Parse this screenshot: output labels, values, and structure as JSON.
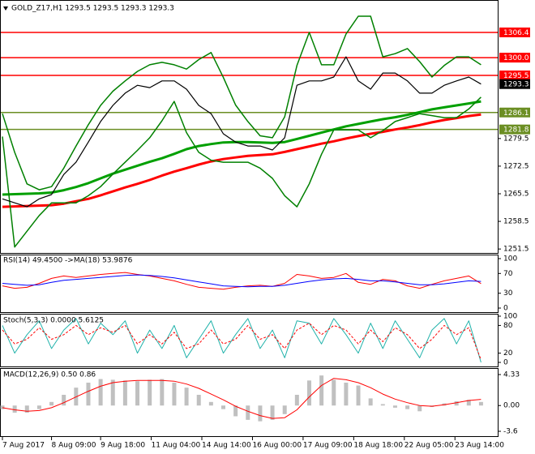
{
  "chart_data": [
    {
      "type": "line",
      "title": "GOLD_Z17,H1  1293.5 1293.5 1293.3 1293.3",
      "x": [
        0,
        8,
        16,
        24,
        32,
        40,
        48,
        56,
        64,
        72,
        80,
        88,
        96,
        104,
        112,
        120,
        128,
        136,
        144,
        152,
        160,
        168,
        176,
        184,
        192,
        200,
        208,
        216,
        224,
        232,
        240,
        248,
        256,
        264,
        272,
        280,
        288,
        296,
        304,
        312
      ],
      "xlim": [
        0,
        316
      ],
      "ylim": [
        1250.5,
        1314.2
      ],
      "yticks": [
        1251.5,
        1258.5,
        1265.5,
        1272.5,
        1279.5
      ],
      "levels": [
        {
          "value": 1306.4,
          "color": "#ff0000"
        },
        {
          "value": 1300,
          "label": "1300.0",
          "color": "#ff0000"
        },
        {
          "value": 1295.5,
          "color": "#ff0000"
        },
        {
          "value": 1293.3,
          "color": "#000000"
        },
        {
          "value": 1286.1,
          "color": "#6b8e23"
        },
        {
          "value": 1281.8,
          "color": "#6b8e23"
        }
      ],
      "series": [
        {
          "color": "#ff0000",
          "width": 3,
          "values": [
            1262.2,
            1262.3,
            1262.4,
            1262.5,
            1262.6,
            1263.0,
            1263.6,
            1264.2,
            1265.1,
            1266.1,
            1267.1,
            1268.0,
            1269.0,
            1270.1,
            1271.1,
            1272.0,
            1272.9,
            1273.7,
            1274.3,
            1274.7,
            1275.1,
            1275.3,
            1275.5,
            1276.1,
            1276.8,
            1277.5,
            1278.2,
            1278.8,
            1279.5,
            1280.1,
            1280.7,
            1281.2,
            1281.8,
            1282.3,
            1282.9,
            1283.6,
            1284.2,
            1284.7,
            1285.2,
            1285.6
          ]
        },
        {
          "color": "#00a000",
          "width": 3,
          "values": [
            1265.3,
            1265.4,
            1265.5,
            1265.6,
            1265.8,
            1266.4,
            1267.2,
            1268.2,
            1269.4,
            1270.6,
            1271.6,
            1272.6,
            1273.6,
            1274.5,
            1275.6,
            1276.8,
            1277.6,
            1278.1,
            1278.5,
            1278.6,
            1278.6,
            1278.5,
            1278.4,
            1278.6,
            1279.4,
            1280.2,
            1281.0,
            1281.8,
            1282.6,
            1283.2,
            1283.8,
            1284.4,
            1284.9,
            1285.5,
            1286.2,
            1286.9,
            1287.4,
            1287.9,
            1288.4,
            1288.9
          ]
        },
        {
          "color": "#008000",
          "width": 1.5,
          "values": [
            1285.8,
            1276,
            1268,
            1266.5,
            1267.3,
            1272,
            1277.6,
            1283,
            1287.9,
            1291.5,
            1294.1,
            1296.5,
            1298.2,
            1298.8,
            1298.2,
            1297.1,
            1299.5,
            1301.3,
            1295,
            1288,
            1283.8,
            1280.2,
            1279.7,
            1285,
            1298,
            1306.4,
            1298.2,
            1298.2,
            1306,
            1310.5,
            1310.5,
            1300.2,
            1301,
            1302.3,
            1299,
            1295.1,
            1298,
            1300.2,
            1300.2,
            1298.2
          ]
        },
        {
          "color": "#008000",
          "width": 1.5,
          "values": [
            1280,
            1252,
            1256,
            1260,
            1263.2,
            1263.2,
            1263.2,
            1265,
            1267.3,
            1270.5,
            1273.5,
            1276.5,
            1279.7,
            1284,
            1288.9,
            1281,
            1276,
            1274,
            1273.5,
            1273.5,
            1273.5,
            1272,
            1269.4,
            1265,
            1262.2,
            1268,
            1275.5,
            1281.7,
            1281.7,
            1281.7,
            1279.7,
            1281.5,
            1283.8,
            1284.8,
            1285.8,
            1285.3,
            1284.8,
            1284.8,
            1287,
            1290.0
          ]
        },
        {
          "color": "#000000",
          "width": 1.2,
          "values": [
            1264.2,
            1263.2,
            1262.2,
            1264.2,
            1265.3,
            1270.4,
            1273.5,
            1278.6,
            1283.8,
            1287.9,
            1291.0,
            1293.0,
            1292.4,
            1294.1,
            1294.1,
            1292.0,
            1287.9,
            1285.8,
            1280.7,
            1278.6,
            1277.6,
            1277.6,
            1276.6,
            1279.7,
            1293.0,
            1294.1,
            1294.1,
            1295.1,
            1300.2,
            1294.1,
            1292.0,
            1296.1,
            1296.1,
            1294.1,
            1291.0,
            1291.0,
            1293.0,
            1294.1,
            1295.1,
            1293.3
          ]
        }
      ]
    },
    {
      "type": "line",
      "title": "RSI(14) 49.4500 ->MA(18) 53.9876",
      "x": [
        0,
        8,
        16,
        24,
        32,
        40,
        48,
        56,
        64,
        72,
        80,
        88,
        96,
        104,
        112,
        120,
        128,
        136,
        144,
        152,
        160,
        168,
        176,
        184,
        192,
        200,
        208,
        216,
        224,
        232,
        240,
        248,
        256,
        264,
        272,
        280,
        288,
        296,
        304,
        312
      ],
      "xlim": [
        0,
        316
      ],
      "ylim": [
        0,
        100
      ],
      "yticks": [
        0,
        30,
        70,
        100
      ],
      "series": [
        {
          "color": "#ff0000",
          "width": 1,
          "values": [
            45,
            40,
            42,
            50,
            60,
            65,
            62,
            65,
            68,
            70,
            72,
            68,
            65,
            60,
            55,
            48,
            42,
            40,
            38,
            42,
            45,
            46,
            44,
            50,
            68,
            65,
            60,
            62,
            70,
            52,
            48,
            58,
            55,
            45,
            40,
            48,
            55,
            60,
            65,
            49.45
          ]
        },
        {
          "color": "#0000ff",
          "width": 1,
          "values": [
            50,
            48,
            46,
            47,
            52,
            56,
            58,
            60,
            62,
            64,
            66,
            67,
            66,
            64,
            61,
            57,
            53,
            49,
            45,
            44,
            43,
            44,
            44,
            46,
            50,
            54,
            57,
            59,
            60,
            58,
            55,
            55,
            53,
            50,
            47,
            47,
            49,
            52,
            55,
            53.9876
          ]
        }
      ]
    },
    {
      "type": "line",
      "title": "Stoch(5,3,3) 0.0000 5.6125",
      "x": [
        0,
        8,
        16,
        24,
        32,
        40,
        48,
        56,
        64,
        72,
        80,
        88,
        96,
        104,
        112,
        120,
        128,
        136,
        144,
        152,
        160,
        168,
        176,
        184,
        192,
        200,
        208,
        216,
        224,
        232,
        240,
        248,
        256,
        264,
        272,
        280,
        288,
        296,
        304,
        312
      ],
      "xlim": [
        0,
        316
      ],
      "ylim": [
        0,
        100
      ],
      "yticks": [
        0,
        20,
        80,
        100
      ],
      "series": [
        {
          "color": "#20b2aa",
          "width": 1,
          "values": [
            80,
            20,
            60,
            90,
            30,
            70,
            95,
            40,
            85,
            60,
            90,
            20,
            70,
            30,
            80,
            10,
            50,
            90,
            20,
            60,
            95,
            30,
            70,
            10,
            90,
            85,
            40,
            95,
            60,
            20,
            85,
            30,
            90,
            50,
            10,
            70,
            95,
            40,
            90,
            0
          ]
        },
        {
          "color": "#ff0000",
          "width": 1,
          "dash": true,
          "values": [
            70,
            40,
            50,
            75,
            50,
            60,
            80,
            60,
            75,
            65,
            80,
            40,
            60,
            40,
            65,
            30,
            40,
            70,
            40,
            50,
            80,
            50,
            60,
            30,
            70,
            85,
            60,
            80,
            70,
            40,
            70,
            45,
            75,
            60,
            30,
            50,
            80,
            60,
            75,
            5.6125
          ]
        }
      ]
    },
    {
      "type": "bar",
      "title": "MACD(12,26,9) 0.50 0.86",
      "x": [
        0,
        8,
        16,
        24,
        32,
        40,
        48,
        56,
        64,
        72,
        80,
        88,
        96,
        104,
        112,
        120,
        128,
        136,
        144,
        152,
        160,
        168,
        176,
        184,
        192,
        200,
        208,
        216,
        224,
        232,
        240,
        248,
        256,
        264,
        272,
        280,
        288,
        296,
        304,
        312
      ],
      "xlim": [
        0,
        316
      ],
      "ylim": [
        -3.6,
        4.33
      ],
      "yticks": [
        -3.6,
        {
          "value": 0,
          "label": "0.00"
        },
        4.33
      ],
      "xticks": [
        {
          "value": 0,
          "label": "7 Aug 2017"
        },
        {
          "value": 32,
          "label": "8 Aug 09:00"
        },
        {
          "value": 64,
          "label": "9 Aug 18:00"
        },
        {
          "value": 97,
          "label": "11 Aug 04:00"
        },
        {
          "value": 130,
          "label": "14 Aug 14:00"
        },
        {
          "value": 163,
          "label": "16 Aug 00:00"
        },
        {
          "value": 196,
          "label": "17 Aug 09:00"
        },
        {
          "value": 229,
          "label": "18 Aug 18:00"
        },
        {
          "value": 262,
          "label": "22 Aug 05:00"
        },
        {
          "value": 295,
          "label": "23 Aug 14:00"
        }
      ],
      "color": "#c0c0c0",
      "values": [
        -0.5,
        -1.0,
        -1.0,
        -0.5,
        0.5,
        1.5,
        2.5,
        3.2,
        3.7,
        3.6,
        3.5,
        3.4,
        3.6,
        3.7,
        3.2,
        2.5,
        1.5,
        0.5,
        -0.5,
        -1.5,
        -2.0,
        -2.2,
        -2.0,
        -1.2,
        1.5,
        3.5,
        4.2,
        3.6,
        3.2,
        2.8,
        1.0,
        0.2,
        -0.3,
        -0.5,
        -0.8,
        -0.2,
        0.3,
        0.6,
        0.8,
        0.5
      ],
      "series": [
        {
          "color": "#ff0000",
          "width": 1,
          "values": [
            -0.3,
            -0.6,
            -0.8,
            -0.7,
            -0.3,
            0.4,
            1.2,
            2.0,
            2.7,
            3.2,
            3.4,
            3.5,
            3.5,
            3.5,
            3.4,
            3.0,
            2.4,
            1.6,
            0.8,
            -0.1,
            -0.8,
            -1.4,
            -1.8,
            -1.7,
            -0.6,
            1.2,
            2.8,
            3.8,
            3.6,
            3.2,
            2.5,
            1.6,
            0.9,
            0.4,
            0.0,
            -0.1,
            0.1,
            0.4,
            0.7,
            0.86
          ]
        }
      ]
    }
  ]
}
